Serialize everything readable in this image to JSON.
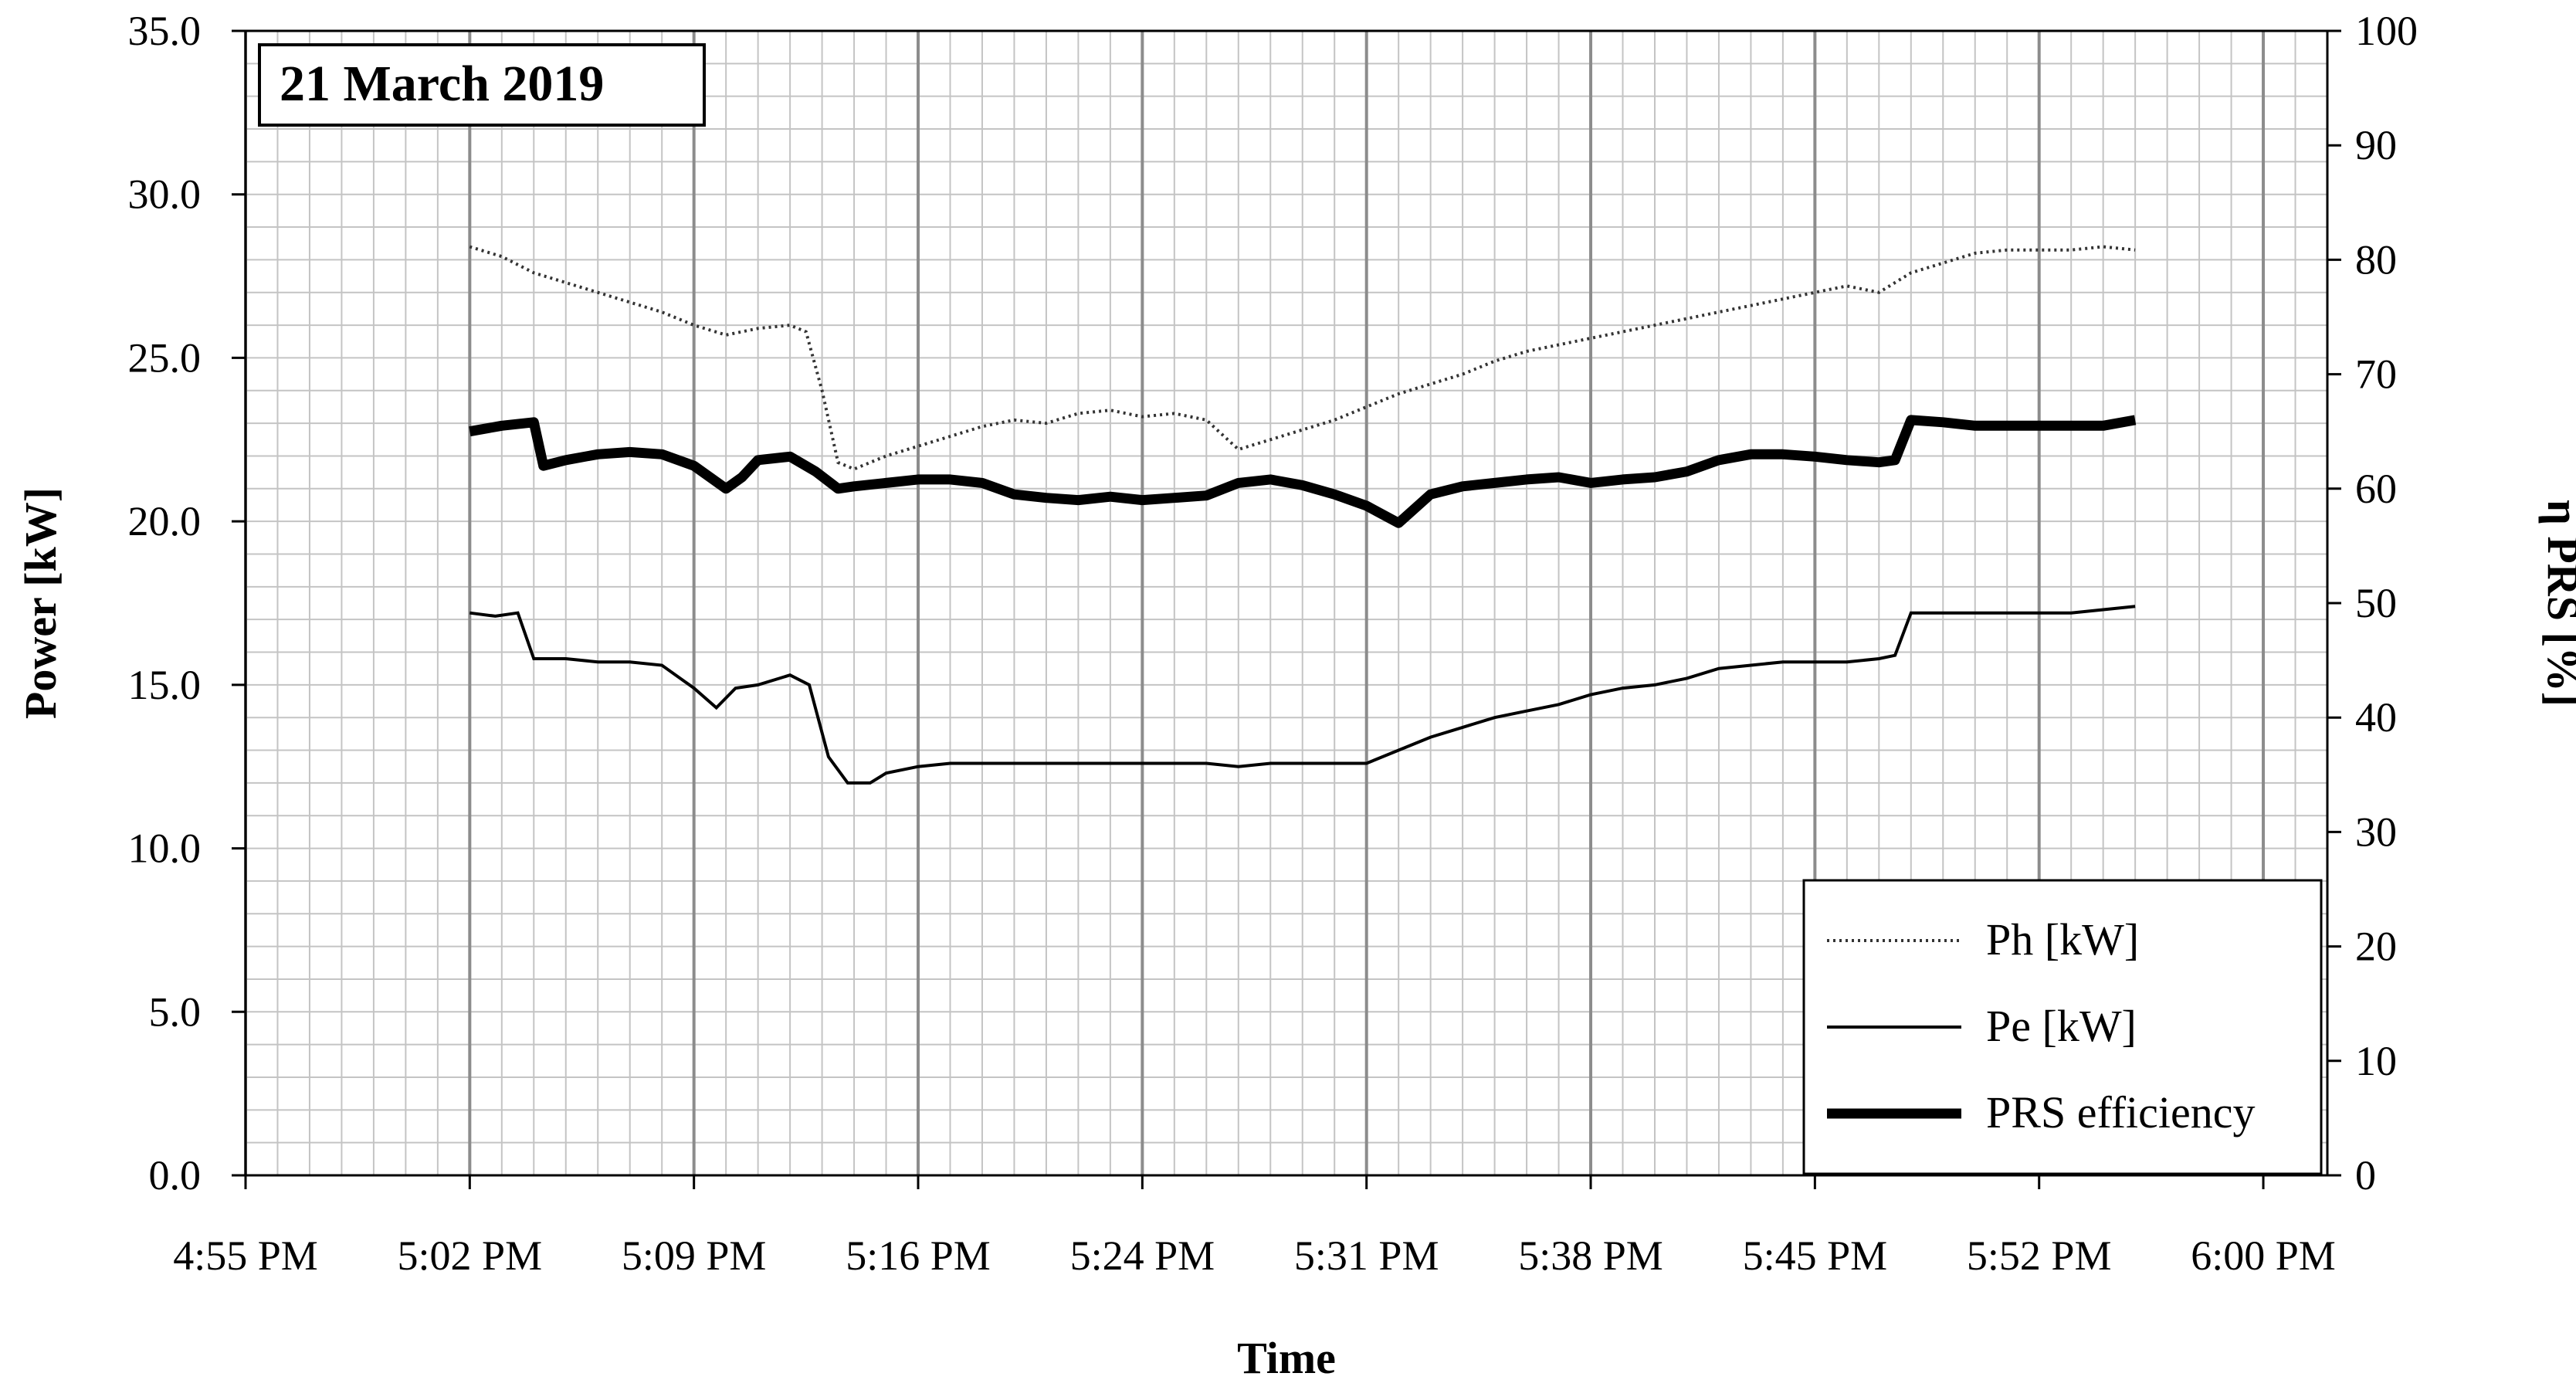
{
  "chart_data": {
    "type": "line",
    "title": "21 March 2019",
    "xlabel": "Time",
    "ylabel": "Power [kW]",
    "y2label": "η PRS [%]",
    "x_range_minutes": [
      295,
      360
    ],
    "x_ticks": [
      {
        "label": "4:55 PM",
        "minute": 295
      },
      {
        "label": "5:02 PM",
        "minute": 302
      },
      {
        "label": "5:09 PM",
        "minute": 309
      },
      {
        "label": "5:16 PM",
        "minute": 316
      },
      {
        "label": "5:24 PM",
        "minute": 323
      },
      {
        "label": "5:31 PM",
        "minute": 330
      },
      {
        "label": "5:38 PM",
        "minute": 337
      },
      {
        "label": "5:45 PM",
        "minute": 344
      },
      {
        "label": "5:52 PM",
        "minute": 351
      },
      {
        "label": "6:00 PM",
        "minute": 358
      }
    ],
    "ylim": [
      0,
      35
    ],
    "y_ticks": [
      "0.0",
      "5.0",
      "10.0",
      "15.0",
      "20.0",
      "25.0",
      "30.0",
      "35.0"
    ],
    "y2lim": [
      0,
      100
    ],
    "y2_ticks": [
      "0",
      "10",
      "20",
      "30",
      "40",
      "50",
      "60",
      "70",
      "80",
      "90",
      "100"
    ],
    "grid": true,
    "legend_position": "bottom-right",
    "series": [
      {
        "name": "Ph [kW]",
        "axis": "left",
        "style": "dotted",
        "x": [
          302,
          303,
          304,
          305,
          306,
          307,
          308,
          309,
          310,
          311,
          312,
          312.5,
          313,
          313.5,
          314,
          315,
          316,
          317,
          318,
          319,
          320,
          321,
          322,
          323,
          324,
          325,
          326,
          327,
          328,
          329,
          330,
          331,
          332,
          333,
          334,
          335,
          336,
          337,
          338,
          339,
          340,
          341,
          342,
          343,
          344,
          345,
          346,
          347,
          348,
          349,
          350,
          351,
          352,
          353,
          354
        ],
        "values": [
          28.4,
          28.1,
          27.6,
          27.3,
          27.0,
          26.7,
          26.4,
          26.0,
          25.7,
          25.9,
          26.0,
          25.8,
          24.0,
          21.8,
          21.6,
          22.0,
          22.3,
          22.6,
          22.9,
          23.1,
          23.0,
          23.3,
          23.4,
          23.2,
          23.3,
          23.1,
          22.2,
          22.5,
          22.8,
          23.1,
          23.5,
          23.9,
          24.2,
          24.5,
          24.9,
          25.2,
          25.4,
          25.6,
          25.8,
          26.0,
          26.2,
          26.4,
          26.6,
          26.8,
          27.0,
          27.2,
          27.0,
          27.6,
          27.9,
          28.2,
          28.3,
          28.3,
          28.3,
          28.4,
          28.3
        ]
      },
      {
        "name": "Pe [kW]",
        "axis": "left",
        "style": "solid-thin",
        "x": [
          302,
          302.8,
          303.5,
          304,
          305,
          306,
          307,
          308,
          309,
          309.7,
          310.3,
          311,
          312,
          312.6,
          313.2,
          313.8,
          314.5,
          315,
          316,
          317,
          318,
          319,
          320,
          321,
          322,
          323,
          324,
          325,
          326,
          327,
          328,
          329,
          330,
          330.5,
          331,
          332,
          333,
          334,
          335,
          336,
          337,
          338,
          339,
          340,
          341,
          342,
          343,
          344,
          345,
          346,
          346.5,
          347,
          348,
          349,
          350,
          351,
          352,
          353,
          354
        ],
        "values": [
          17.2,
          17.1,
          17.2,
          15.8,
          15.8,
          15.7,
          15.7,
          15.6,
          14.9,
          14.3,
          14.9,
          15.0,
          15.3,
          15.0,
          12.8,
          12.0,
          12.0,
          12.3,
          12.5,
          12.6,
          12.6,
          12.6,
          12.6,
          12.6,
          12.6,
          12.6,
          12.6,
          12.6,
          12.5,
          12.6,
          12.6,
          12.6,
          12.6,
          12.8,
          13.0,
          13.4,
          13.7,
          14.0,
          14.2,
          14.4,
          14.7,
          14.9,
          15.0,
          15.2,
          15.5,
          15.6,
          15.7,
          15.7,
          15.7,
          15.8,
          15.9,
          17.2,
          17.2,
          17.2,
          17.2,
          17.2,
          17.2,
          17.3,
          17.4
        ]
      },
      {
        "name": "PRS efficiency",
        "axis": "right",
        "style": "solid-thick",
        "x": [
          302,
          303,
          304,
          304.3,
          305,
          306,
          307,
          308,
          309,
          310,
          310.5,
          311,
          312,
          312.8,
          313.5,
          314,
          315,
          316,
          317,
          318,
          319,
          320,
          321,
          322,
          323,
          324,
          325,
          326,
          327,
          328,
          329,
          330,
          331,
          332,
          333,
          334,
          335,
          336,
          337,
          338,
          339,
          340,
          341,
          342,
          343,
          344,
          345,
          346,
          346.5,
          347,
          348,
          349,
          350,
          351,
          352,
          353,
          354
        ],
        "values": [
          65.0,
          65.5,
          65.8,
          62.0,
          62.5,
          63.0,
          63.2,
          63.0,
          62.0,
          60.0,
          61.0,
          62.5,
          62.8,
          61.5,
          60.0,
          60.2,
          60.5,
          60.8,
          60.8,
          60.5,
          59.5,
          59.2,
          59.0,
          59.3,
          59.0,
          59.2,
          59.4,
          60.5,
          60.8,
          60.3,
          59.5,
          58.5,
          57.0,
          59.5,
          60.2,
          60.5,
          60.8,
          61.0,
          60.5,
          60.8,
          61.0,
          61.5,
          62.5,
          63.0,
          63.0,
          62.8,
          62.5,
          62.3,
          62.5,
          66.0,
          65.8,
          65.5,
          65.5,
          65.5,
          65.5,
          65.5,
          66.0
        ]
      }
    ]
  }
}
